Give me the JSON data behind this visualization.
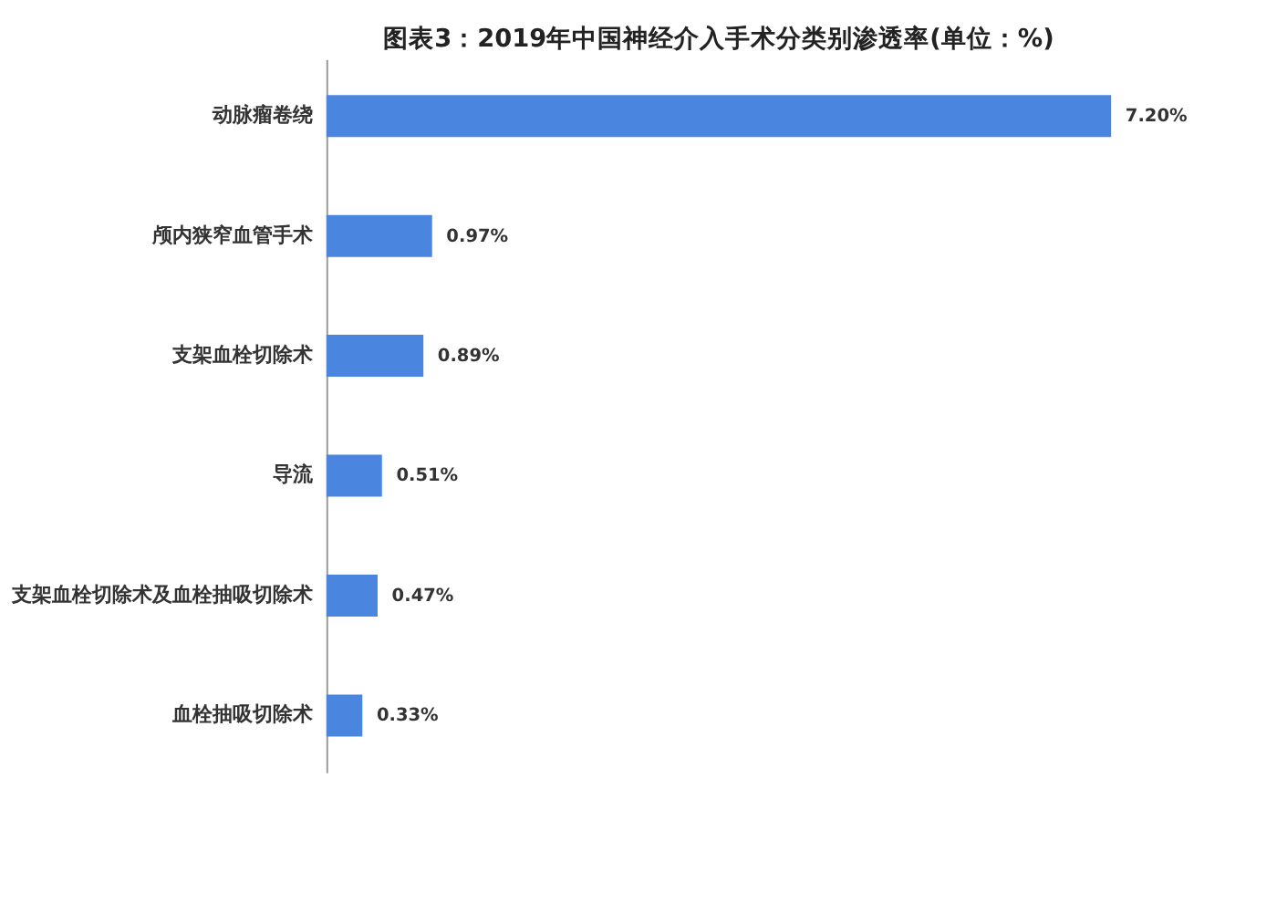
{
  "chart_data": {
    "type": "bar",
    "orientation": "horizontal",
    "title": "图表3：2019年中国神经介入手术分类别渗透率(单位：%)",
    "categories": [
      "动脉瘤卷绕",
      "颅内狭窄血管手术",
      "支架血栓切除术",
      "导流",
      "支架血栓切除术及血栓抽吸切除术",
      "血栓抽吸切除术"
    ],
    "values": [
      7.2,
      0.97,
      0.89,
      0.51,
      0.47,
      0.33
    ],
    "value_labels": [
      "7.20%",
      "0.97%",
      "0.89%",
      "0.51%",
      "0.47%",
      "0.33%"
    ],
    "color": "#4a86e0"
  }
}
